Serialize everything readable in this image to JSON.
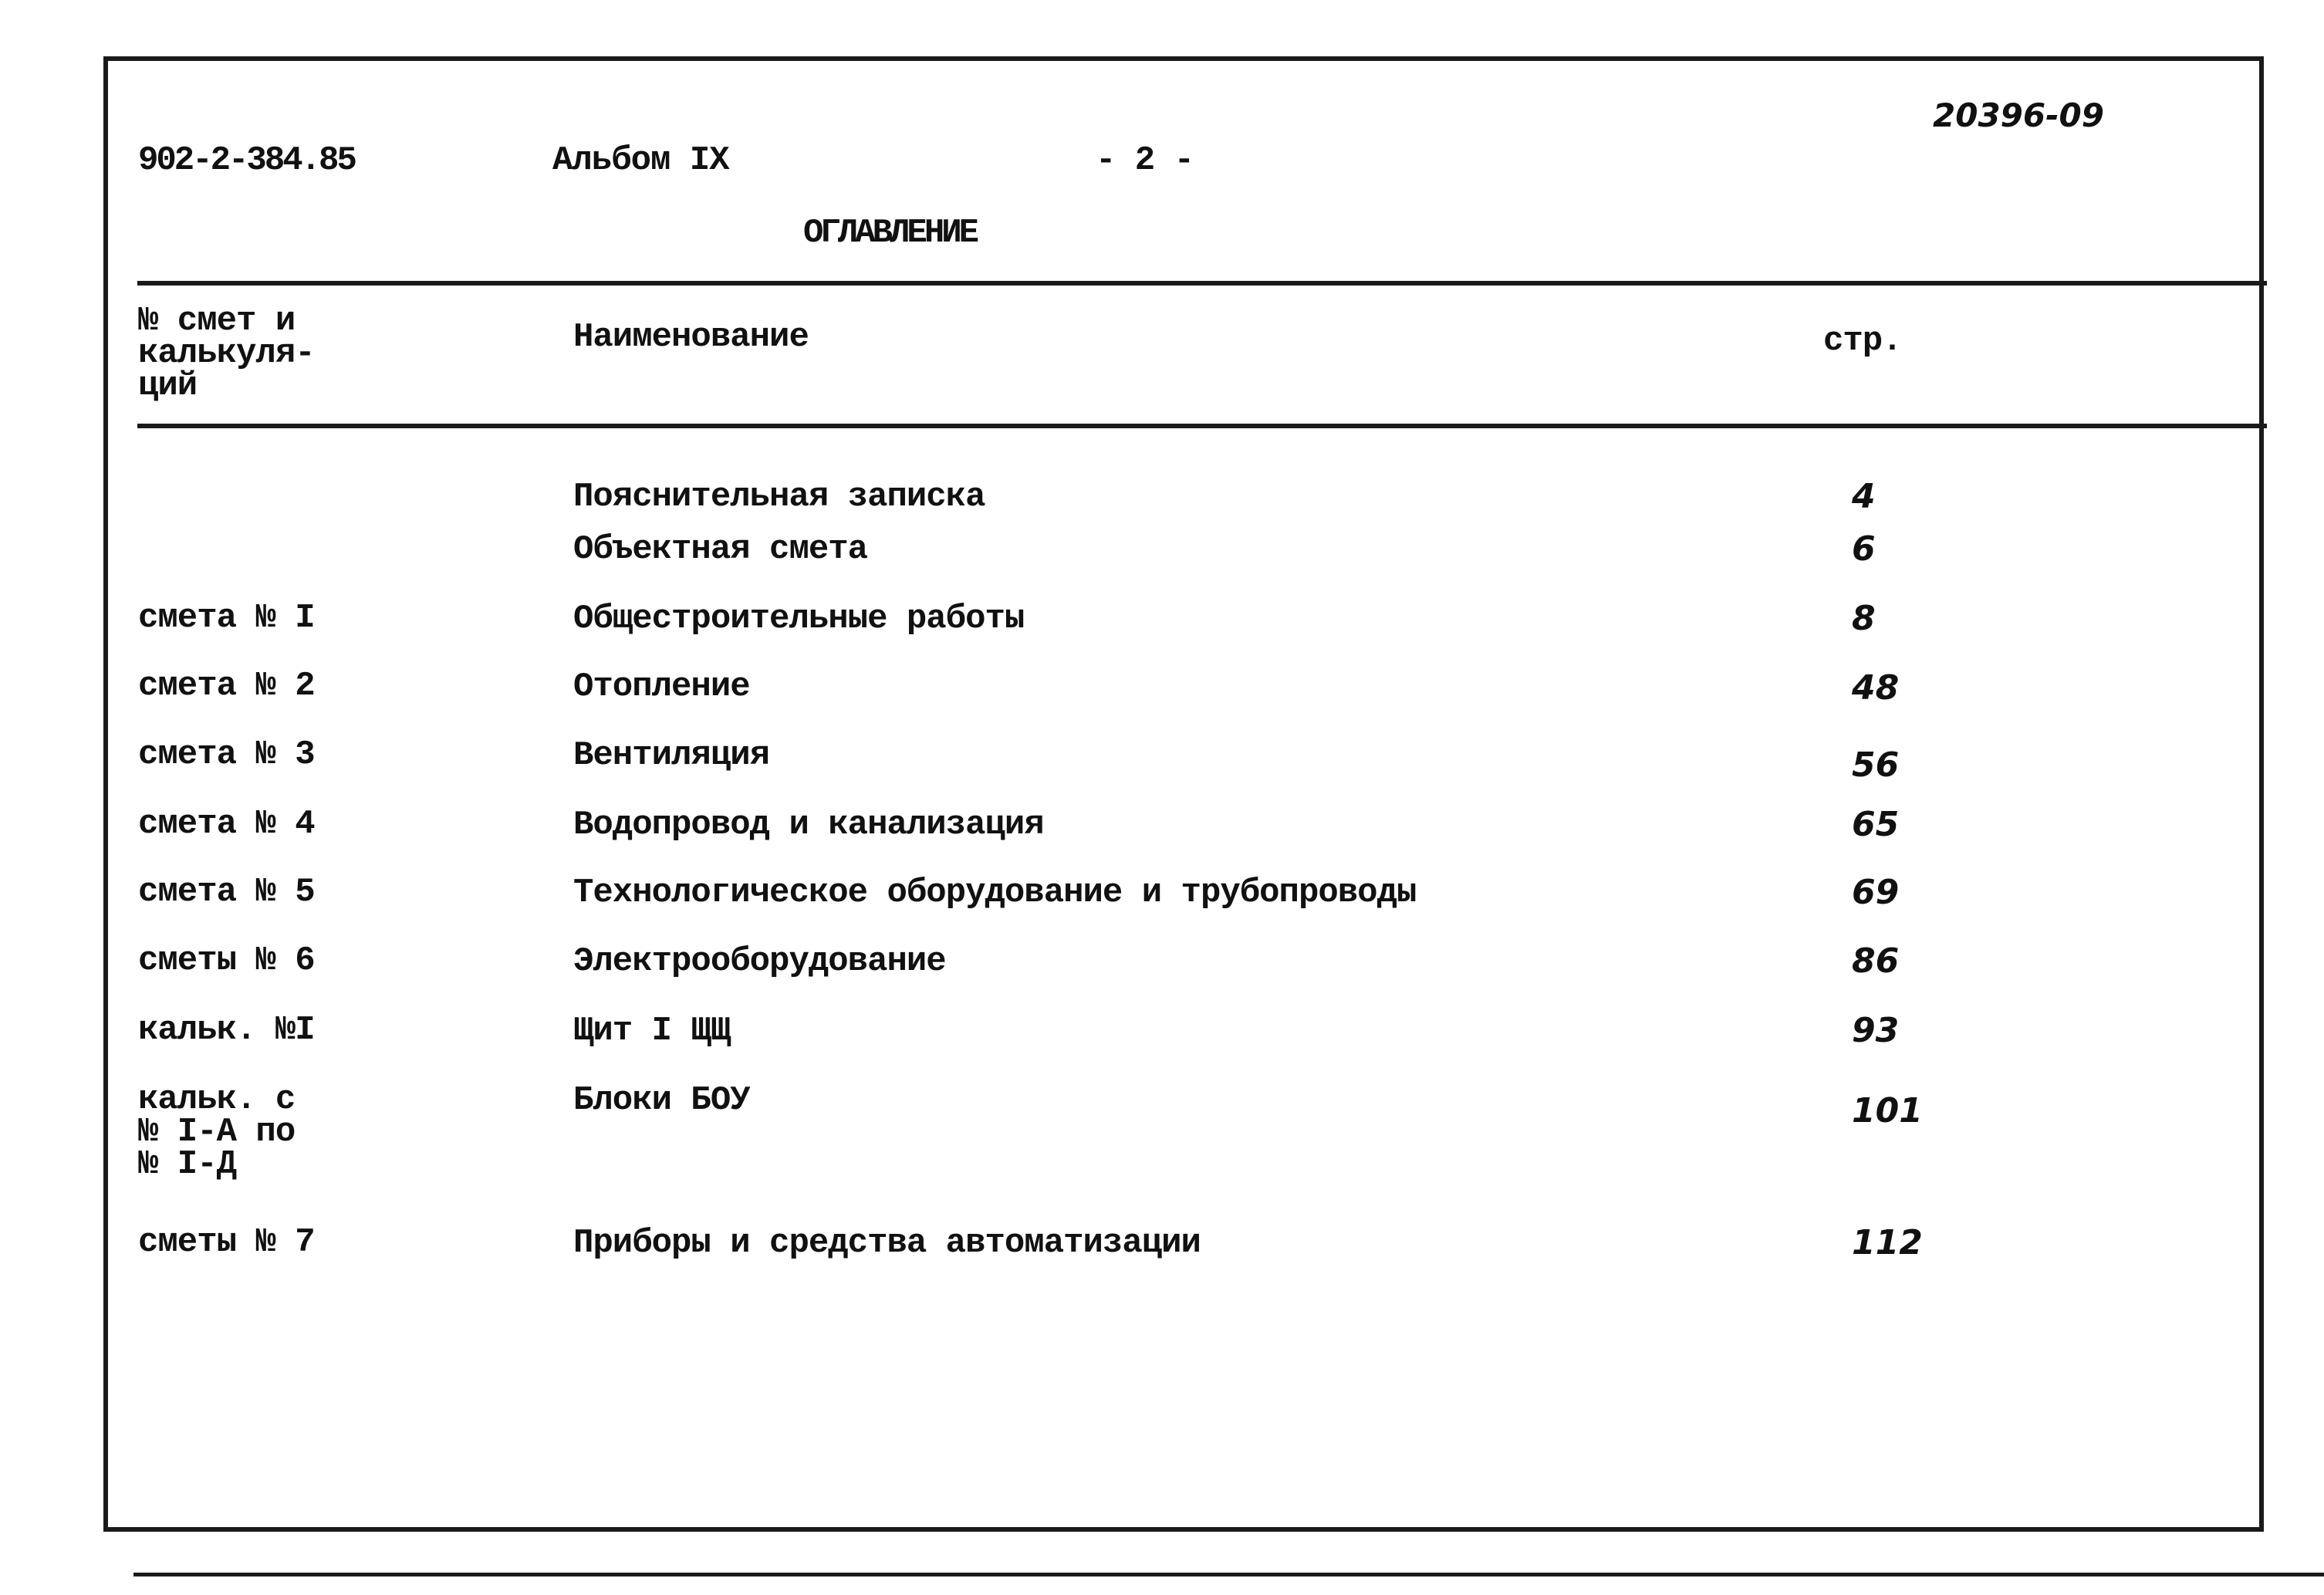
{
  "header": {
    "doc_code": "902-2-384.85",
    "album": "Альбом IX",
    "page": "- 2 -",
    "archive_number": "20396-09",
    "title": "ОГЛАВЛЕНИЕ"
  },
  "table": {
    "columns": [
      "№ смет и\nкалькуля-\nций",
      "Наименование",
      "стр."
    ],
    "rows": [
      {
        "code": "",
        "name": "Пояснительная записка",
        "page": "4"
      },
      {
        "code": "",
        "name": "Объектная смета",
        "page": "6"
      },
      {
        "code": "смета № I",
        "name": "Общестроительные работы",
        "page": "8"
      },
      {
        "code": "смета № 2",
        "name": "Отопление",
        "page": "48"
      },
      {
        "code": "смета № 3",
        "name": "Вентиляция",
        "page": "56"
      },
      {
        "code": "смета № 4",
        "name": "Водопровод и канализация",
        "page": "65"
      },
      {
        "code": "смета № 5",
        "name": "Технологическое оборудование и трубопроводы",
        "page": "69"
      },
      {
        "code": "сметы № 6",
        "name": "Электрооборудование",
        "page": "86"
      },
      {
        "code": "кальк. №I",
        "name": "Щит I ЩЩ",
        "page": "93"
      },
      {
        "code": "кальк. с\n№ I-А по\n№ I-Д",
        "name": "Блоки БОУ",
        "page": "101"
      },
      {
        "code": "сметы № 7",
        "name": "Приборы и средства автоматизации",
        "page": "112"
      }
    ]
  }
}
